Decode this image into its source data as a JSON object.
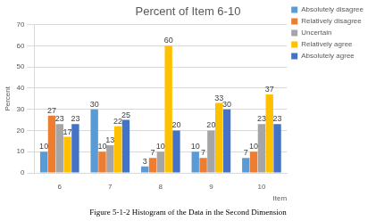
{
  "chart_data": {
    "type": "bar",
    "title": "Percent of Item 6-10",
    "subtitle": "Figure 5-1-2 Histogram of the Data in the Second Dimension",
    "x_label": "Item",
    "y_label": "Percent",
    "categories": [
      "6",
      "7",
      "8",
      "9",
      "10"
    ],
    "series": [
      {
        "name": "Absolutely disagree",
        "color": "#5b9bd5",
        "values": [
          10,
          30,
          3,
          10,
          7
        ]
      },
      {
        "name": "Relatively disagree",
        "color": "#ed7d31",
        "values": [
          27,
          10,
          7,
          7,
          10
        ]
      },
      {
        "name": "Uncertain",
        "color": "#a5a5a5",
        "values": [
          23,
          13,
          10,
          20,
          23
        ]
      },
      {
        "name": "Relatively agree",
        "color": "#ffc000",
        "values": [
          17,
          22,
          60,
          33,
          37
        ]
      },
      {
        "name": "Absolutely agree",
        "color": "#4472c4",
        "values": [
          23,
          25,
          20,
          30,
          23
        ]
      }
    ],
    "ylim": [
      0,
      70
    ],
    "yticks": [
      0,
      10,
      20,
      30,
      40,
      50,
      60,
      70
    ],
    "grid": true,
    "legend": "right",
    "data_labels": true
  }
}
